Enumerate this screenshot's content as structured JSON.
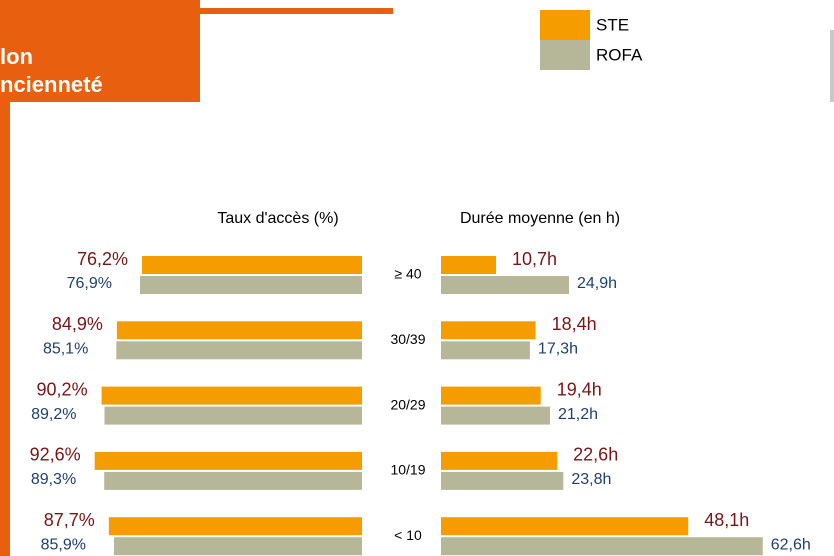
{
  "header": {
    "lines": [
      "lon",
      "ncienneté"
    ]
  },
  "chart_data": [
    {
      "type": "hbar-left",
      "title": "Taux d'accès (%)",
      "categories": [
        "≥ 40",
        "30/39",
        "20/29",
        "10/19",
        "< 10"
      ],
      "series": [
        {
          "name": "STE",
          "color": "#f59c00",
          "values": [
            76.2,
            84.9,
            90.2,
            92.6,
            87.7
          ],
          "value_labels": [
            "76,2%",
            "84,9%",
            "90,2%",
            "92,6%",
            "87,7%"
          ]
        },
        {
          "name": "ROFA",
          "color": "#b6b798",
          "values": [
            76.9,
            85.1,
            89.2,
            89.3,
            85.9
          ],
          "value_labels": [
            "76,9%",
            "85,1%",
            "89,2%",
            "89,3%",
            "85,9%"
          ]
        }
      ]
    },
    {
      "type": "hbar-right",
      "title": "Durée moyenne (en h)",
      "series": [
        {
          "color": "#f59c00",
          "values": [
            10.7,
            18.4,
            19.4,
            22.6,
            48.1
          ],
          "value_labels": [
            "10,7h",
            "18,4h",
            "19,4h",
            "22,6h",
            "48,1h"
          ]
        },
        {
          "color": "#b6b798",
          "values": [
            24.9,
            17.3,
            21.2,
            23.8,
            62.6
          ],
          "value_labels": [
            "24,9h",
            "17,3h",
            "21,2h",
            "23,8h",
            "62,6h"
          ]
        }
      ]
    }
  ]
}
